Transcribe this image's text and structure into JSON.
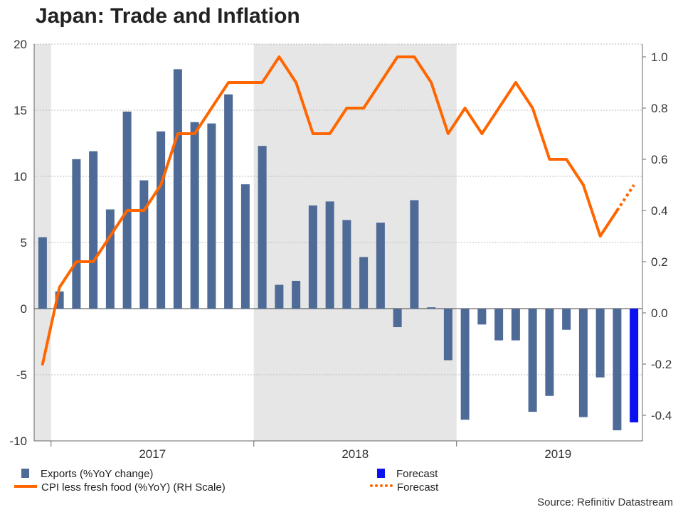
{
  "title": "Japan: Trade and Inflation",
  "source": "Source: Refinitiv Datastream",
  "legend": {
    "exports": "Exports (%YoY change)",
    "cpi": "CPI less fresh food (%YoY) (RH Scale)",
    "forecast_bar": "Forecast",
    "forecast_line": "Forecast"
  },
  "colors": {
    "bar": "#4e6a96",
    "forecast_bar": "#0a12f0",
    "line": "#ff6600",
    "shade": "#e6e6e6"
  },
  "chart_data": {
    "type": "bar",
    "x_labels": [
      "2017",
      "2018",
      "2019"
    ],
    "left_axis": {
      "ticks": [
        "20",
        "15",
        "10",
        "5",
        "0",
        "-5",
        "-10"
      ],
      "ylim": [
        -10,
        20
      ]
    },
    "right_axis": {
      "ticks": [
        "1.0",
        "0.8",
        "0.6",
        "0.4",
        "0.2",
        "0.0",
        "-0.2",
        "-0.4"
      ],
      "ylim": [
        -0.5,
        1.05
      ]
    },
    "grid": true,
    "series": [
      {
        "name": "Exports (%YoY change)",
        "type": "bar",
        "axis": "left",
        "values": [
          5.4,
          1.3,
          11.3,
          11.9,
          7.5,
          14.9,
          9.7,
          13.4,
          18.1,
          14.1,
          14.0,
          16.2,
          9.4,
          12.3,
          1.8,
          2.1,
          7.8,
          8.1,
          6.7,
          3.9,
          6.5,
          -1.4,
          8.2,
          0.1,
          -3.9,
          -8.4,
          -1.2,
          -2.4,
          -2.4,
          -7.8,
          -6.6,
          -1.6,
          -8.2,
          -5.2,
          -9.2
        ]
      },
      {
        "name": "Forecast",
        "type": "bar",
        "axis": "left",
        "values": [
          null,
          null,
          null,
          null,
          null,
          null,
          null,
          null,
          null,
          null,
          null,
          null,
          null,
          null,
          null,
          null,
          null,
          null,
          null,
          null,
          null,
          null,
          null,
          null,
          null,
          null,
          null,
          null,
          null,
          null,
          null,
          null,
          null,
          null,
          null,
          -8.6
        ]
      },
      {
        "name": "CPI less fresh food (%YoY) (RH Scale)",
        "type": "line",
        "axis": "right",
        "values": [
          -0.2,
          0.1,
          0.2,
          0.2,
          0.3,
          0.4,
          0.4,
          0.5,
          0.7,
          0.7,
          0.8,
          0.9,
          0.9,
          0.9,
          1.0,
          0.9,
          0.7,
          0.7,
          0.8,
          0.8,
          0.9,
          1.0,
          1.0,
          0.9,
          0.7,
          0.8,
          0.7,
          0.8,
          0.9,
          0.8,
          0.6,
          0.6,
          0.5,
          0.3,
          0.4
        ]
      },
      {
        "name": "Forecast",
        "type": "line",
        "axis": "right",
        "values": [
          null,
          null,
          null,
          null,
          null,
          null,
          null,
          null,
          null,
          null,
          null,
          null,
          null,
          null,
          null,
          null,
          null,
          null,
          null,
          null,
          null,
          null,
          null,
          null,
          null,
          null,
          null,
          null,
          null,
          null,
          null,
          null,
          null,
          null,
          0.4,
          0.5
        ]
      }
    ]
  }
}
